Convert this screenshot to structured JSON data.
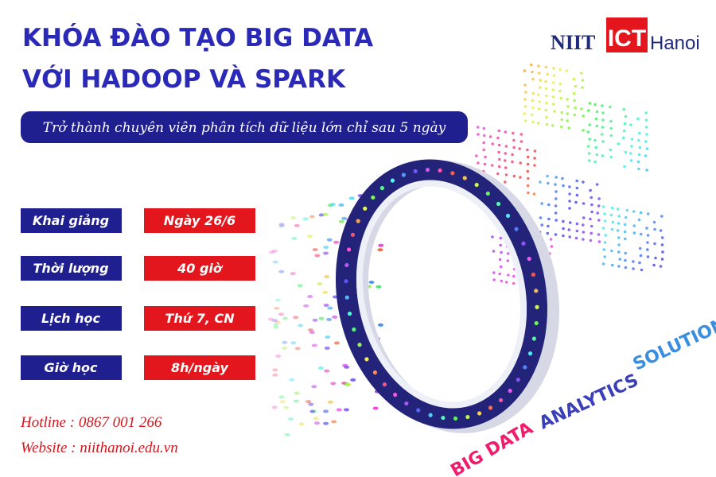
{
  "header": {
    "title_lines": [
      "KHÓA ĐÀO TẠO BIG DATA",
      "VỚI HADOOP VÀ SPARK"
    ],
    "subtitle": "Trở thành chuyên viên phân tích dữ liệu lớn chỉ sau 5 ngày"
  },
  "logo": {
    "left": "NIIT",
    "middle": "ICT",
    "right": "Hanoi"
  },
  "schedule": {
    "rows": [
      [
        "Khai giảng",
        "Ngày 26/6"
      ],
      [
        "Thời lượng",
        "40 giờ"
      ],
      [
        "Lịch học",
        "Thứ 7, CN"
      ],
      [
        "Giờ học",
        "8h/ngày"
      ]
    ]
  },
  "contact": {
    "hotline": "Hotline : 0867 001 266",
    "website": "Website : niithanoi.edu.vn"
  },
  "graphic_labels": [
    "BIG DATA",
    "ANALYTICS",
    "SOLUTION"
  ]
}
